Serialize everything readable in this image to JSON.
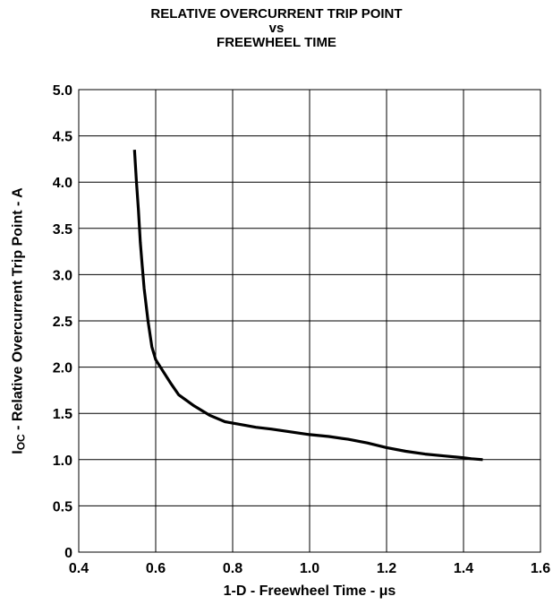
{
  "chart_data": {
    "type": "line",
    "title_lines": [
      "RELATIVE OVERCURRENT TRIP POINT",
      "vs",
      "FREEWHEEL TIME"
    ],
    "xlabel": "1-D - Freewheel Time  - μs",
    "ylabel_main": "I",
    "ylabel_sub": "OC",
    "ylabel_rest": " - Relative Overcurrent Trip Point - A",
    "xlim": [
      0.4,
      1.6
    ],
    "ylim": [
      0,
      5.0
    ],
    "x_ticks": [
      "0.4",
      "0.6",
      "0.8",
      "1.0",
      "1.2",
      "1.4",
      "1.6"
    ],
    "y_ticks": [
      "0",
      "0.5",
      "1.0",
      "1.5",
      "2.0",
      "2.5",
      "3.0",
      "3.5",
      "4.0",
      "4.5",
      "5.0"
    ],
    "grid": true,
    "series": [
      {
        "x": [
          0.545,
          0.55,
          0.555,
          0.56,
          0.565,
          0.57,
          0.58,
          0.59,
          0.6,
          0.62,
          0.64,
          0.66,
          0.7,
          0.74,
          0.78,
          0.82,
          0.86,
          0.9,
          0.95,
          1.0,
          1.05,
          1.1,
          1.15,
          1.2,
          1.25,
          1.3,
          1.35,
          1.4,
          1.42,
          1.45
        ],
        "y": [
          4.35,
          4.0,
          3.7,
          3.35,
          3.1,
          2.85,
          2.5,
          2.22,
          2.08,
          1.95,
          1.82,
          1.7,
          1.58,
          1.48,
          1.41,
          1.38,
          1.35,
          1.33,
          1.3,
          1.27,
          1.25,
          1.22,
          1.18,
          1.13,
          1.09,
          1.06,
          1.04,
          1.02,
          1.01,
          1.0
        ]
      }
    ]
  }
}
